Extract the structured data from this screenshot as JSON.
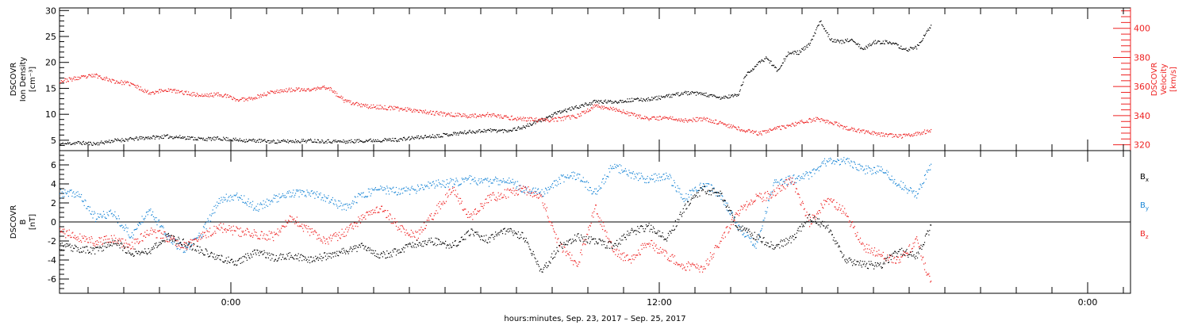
{
  "colors": {
    "black": "#000000",
    "red": "#ee2222",
    "blue": "#1a86d6"
  },
  "xlabel": "hours:minutes, Sep. 23, 2017 – Sep. 25, 2017",
  "x_ticks": [
    {
      "hours": 0,
      "label": "0:00"
    },
    {
      "hours": 12,
      "label": "12:00"
    },
    {
      "hours": 24,
      "label": "0:00"
    }
  ],
  "x_range_hours": [
    -4.8,
    25.2
  ],
  "chart_data": [
    {
      "type": "scatter",
      "panel": "top",
      "ylabel_left": [
        "DSCOVR",
        "Ion  Density",
        "[cm⁻³]"
      ],
      "ylabel_right": [
        "DSCOVR",
        "Velocity",
        "[km/s]"
      ],
      "ylim_left": [
        3,
        30.5
      ],
      "yticks_left": [
        5,
        10,
        15,
        20,
        25,
        30
      ],
      "ylim_right": [
        316,
        414
      ],
      "yticks_right": [
        320,
        340,
        360,
        380,
        400
      ],
      "series": [
        {
          "axis": "left",
          "color": "black",
          "x": [
            -4.8,
            -4.3,
            -3.8,
            -3.3,
            -2.8,
            -2.3,
            -1.8,
            -1.3,
            -0.8,
            -0.3,
            0.2,
            0.7,
            1.2,
            1.7,
            2.2,
            2.7,
            3.2,
            3.7,
            4.2,
            4.7,
            5.2,
            5.7,
            6.2,
            6.7,
            7.2,
            7.7,
            8.2,
            8.7,
            9.2,
            9.7,
            10.2,
            10.7,
            11.2,
            11.7,
            12.2,
            12.7,
            13.2,
            13.7,
            14.2,
            14.4,
            14.7,
            15.0,
            15.3,
            15.6,
            15.9,
            16.2,
            16.5,
            16.8,
            17.1,
            17.4,
            17.7,
            18.0,
            18.3,
            18.6,
            18.9,
            19.2,
            19.6
          ],
          "y": [
            4.3,
            4.6,
            4.4,
            5.0,
            5.3,
            5.6,
            5.8,
            5.6,
            5.3,
            5.4,
            5.1,
            5.0,
            4.8,
            4.9,
            5.0,
            4.9,
            4.8,
            5.0,
            5.1,
            5.2,
            5.6,
            5.9,
            6.3,
            6.7,
            7.0,
            6.9,
            7.6,
            9.0,
            10.5,
            11.5,
            12.5,
            12.5,
            12.8,
            13.0,
            13.5,
            14.2,
            14.0,
            13.2,
            13.8,
            17.5,
            19.5,
            21.0,
            18.5,
            21.8,
            22.0,
            23.5,
            28.0,
            24.5,
            24.0,
            24.5,
            22.5,
            24.0,
            24.0,
            23.5,
            22.5,
            23.0,
            27.0
          ]
        },
        {
          "axis": "right",
          "color": "red",
          "x": [
            -4.8,
            -4.3,
            -3.8,
            -3.3,
            -2.8,
            -2.3,
            -1.8,
            -1.3,
            -0.8,
            -0.3,
            0.2,
            0.7,
            1.2,
            1.7,
            2.2,
            2.7,
            3.2,
            3.7,
            4.2,
            4.7,
            5.2,
            5.7,
            6.2,
            6.7,
            7.2,
            7.7,
            8.2,
            8.7,
            9.2,
            9.7,
            10.2,
            10.7,
            11.2,
            11.7,
            12.2,
            12.7,
            13.2,
            13.6,
            14.0,
            14.4,
            14.8,
            15.2,
            15.6,
            16.0,
            16.4,
            16.8,
            17.2,
            17.6,
            18.0,
            18.4,
            18.8,
            19.2,
            19.6
          ],
          "y": [
            364,
            366,
            368,
            364,
            362,
            356,
            358,
            356,
            354,
            355,
            351,
            353,
            357,
            358,
            358,
            360,
            350,
            347,
            346,
            345,
            344,
            342,
            341,
            340,
            341,
            339,
            338,
            337,
            338,
            340,
            347,
            345,
            341,
            338,
            339,
            337,
            338,
            336,
            333,
            330,
            328,
            331,
            333,
            336,
            338,
            336,
            332,
            330,
            328,
            327,
            326,
            328,
            330
          ]
        }
      ]
    },
    {
      "type": "scatter",
      "panel": "bottom",
      "ylabel_left": [
        "DSCOVR",
        "B",
        "[nT]"
      ],
      "ylim": [
        -7.5,
        7.5
      ],
      "yticks": [
        -6,
        -4,
        -2,
        0,
        2,
        4,
        6
      ],
      "zero_line": true,
      "series": [
        {
          "name": "Bx",
          "color": "black",
          "x": [
            -4.8,
            -4.3,
            -3.8,
            -3.3,
            -2.8,
            -2.3,
            -1.8,
            -1.3,
            -0.8,
            -0.3,
            0.2,
            0.7,
            1.2,
            1.7,
            2.2,
            2.7,
            3.2,
            3.7,
            4.2,
            4.7,
            5.2,
            5.7,
            6.2,
            6.7,
            7.2,
            7.7,
            8.2,
            8.7,
            9.2,
            9.7,
            10.2,
            10.7,
            11.2,
            11.7,
            12.2,
            12.7,
            13.2,
            13.7,
            14.2,
            14.7,
            15.2,
            15.7,
            16.2,
            16.7,
            17.2,
            17.7,
            18.2,
            18.7,
            19.2,
            19.6
          ],
          "y": [
            -2.5,
            -2.8,
            -3.0,
            -2.0,
            -3.2,
            -3.0,
            -1.5,
            -2.2,
            -3.0,
            -3.8,
            -4.2,
            -3.0,
            -3.8,
            -3.5,
            -4.0,
            -3.5,
            -3.0,
            -2.5,
            -3.5,
            -3.0,
            -2.2,
            -2.0,
            -2.5,
            -1.0,
            -1.8,
            -0.8,
            -1.5,
            -5.2,
            -2.5,
            -1.5,
            -2.0,
            -2.5,
            -1.0,
            -0.5,
            -1.8,
            1.5,
            3.5,
            3.0,
            -0.5,
            -1.5,
            -2.5,
            -1.8,
            0.5,
            -0.5,
            -4.0,
            -4.5,
            -4.5,
            -3.0,
            -3.5,
            -0.5
          ]
        },
        {
          "name": "By",
          "color": "blue",
          "x": [
            -4.8,
            -4.3,
            -3.8,
            -3.3,
            -2.8,
            -2.3,
            -1.8,
            -1.3,
            -0.8,
            -0.3,
            0.2,
            0.7,
            1.2,
            1.7,
            2.2,
            2.7,
            3.2,
            3.7,
            4.2,
            4.7,
            5.2,
            5.7,
            6.2,
            6.7,
            7.2,
            7.7,
            8.2,
            8.7,
            9.2,
            9.7,
            10.2,
            10.7,
            11.2,
            11.7,
            12.2,
            12.7,
            13.2,
            13.7,
            14.2,
            14.7,
            15.2,
            15.7,
            16.2,
            16.7,
            17.2,
            17.7,
            18.2,
            18.7,
            19.2,
            19.6
          ],
          "y": [
            3.0,
            3.0,
            0.5,
            1.0,
            -1.5,
            1.5,
            -1.5,
            -3.0,
            -1.0,
            2.5,
            2.8,
            1.5,
            2.5,
            3.0,
            3.0,
            2.5,
            1.5,
            3.0,
            3.5,
            3.2,
            3.5,
            4.0,
            4.2,
            4.5,
            4.2,
            4.5,
            3.5,
            3.0,
            4.5,
            5.0,
            3.0,
            6.0,
            5.0,
            4.5,
            5.0,
            2.5,
            4.0,
            3.0,
            -0.5,
            -2.5,
            4.0,
            4.5,
            5.0,
            6.5,
            6.5,
            5.5,
            5.5,
            4.0,
            3.0,
            6.0
          ]
        },
        {
          "name": "Bz",
          "color": "red",
          "x": [
            -4.8,
            -4.3,
            -3.8,
            -3.3,
            -2.8,
            -2.3,
            -1.8,
            -1.3,
            -0.8,
            -0.3,
            0.2,
            0.7,
            1.2,
            1.7,
            2.2,
            2.7,
            3.2,
            3.7,
            4.2,
            4.7,
            5.2,
            5.7,
            6.2,
            6.7,
            7.2,
            7.7,
            8.2,
            8.7,
            9.2,
            9.7,
            10.2,
            10.7,
            11.2,
            11.7,
            12.2,
            12.7,
            13.2,
            13.7,
            14.2,
            14.7,
            15.2,
            15.7,
            16.2,
            16.7,
            17.2,
            17.7,
            18.2,
            18.7,
            19.2,
            19.6
          ],
          "y": [
            -1.0,
            -1.5,
            -2.0,
            -1.8,
            -2.5,
            -1.0,
            -1.5,
            -2.5,
            -1.5,
            -0.5,
            -1.0,
            -1.2,
            -1.5,
            0.5,
            -1.0,
            -2.0,
            -1.0,
            0.5,
            1.5,
            -0.5,
            -1.5,
            1.0,
            3.5,
            0.5,
            2.5,
            3.0,
            3.5,
            2.5,
            -2.5,
            -4.5,
            1.5,
            -3.0,
            -4.0,
            -2.0,
            -3.5,
            -4.5,
            -5.0,
            -2.0,
            1.0,
            2.5,
            3.0,
            4.5,
            0.0,
            2.5,
            1.0,
            -2.5,
            -3.5,
            -4.0,
            -2.0,
            -6.5
          ]
        }
      ],
      "legend": [
        {
          "label": "B",
          "sub": "x",
          "color": "black"
        },
        {
          "label": "B",
          "sub": "y",
          "color": "blue"
        },
        {
          "label": "B",
          "sub": "z",
          "color": "red"
        }
      ],
      "legend_placement": "right"
    }
  ]
}
